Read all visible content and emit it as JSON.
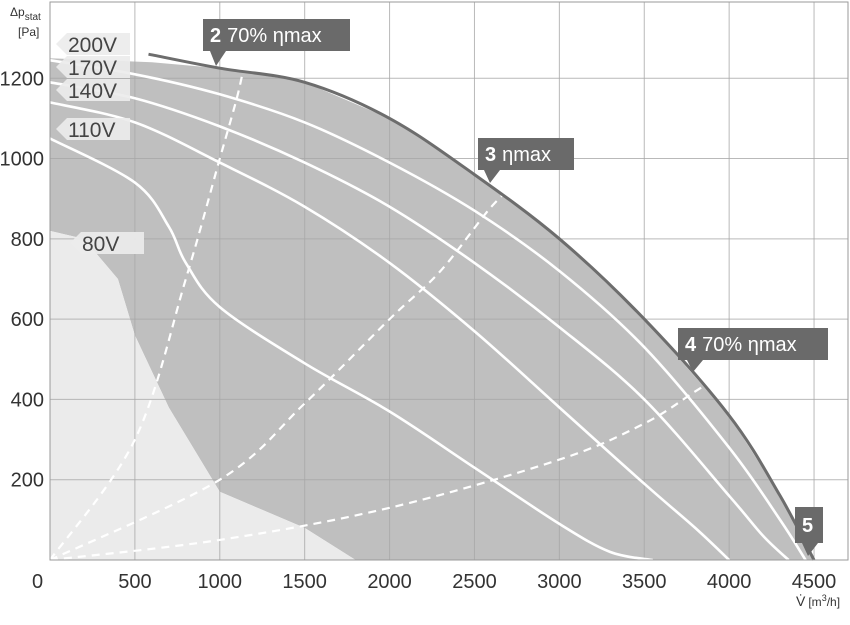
{
  "chart_data": {
    "type": "line",
    "title": "",
    "xlabel": "V̇ [m³/h]",
    "ylabel": "Δp_stat [Pa]",
    "xlabel_parts": {
      "symbol": "V̇",
      "unit_prefix": "[m",
      "unit_sup": "3",
      "unit_suffix": "/h]"
    },
    "ylabel_parts": {
      "prefix": "Δp",
      "sub": "stat",
      "unit": "[Pa]"
    },
    "xlim": [
      0,
      4700
    ],
    "ylim": [
      0,
      1390
    ],
    "origin_label": "0",
    "xticks": [
      500,
      1000,
      1500,
      2000,
      2500,
      3000,
      3500,
      4000,
      4500
    ],
    "yticks": [
      200,
      400,
      600,
      800,
      1000,
      1200
    ],
    "grid": true,
    "colors": {
      "operating_area": "#bfbfbf",
      "low_area": "#ebebeb",
      "envelope": "#6d6d6d",
      "curves": "#ffffff",
      "label_box": "#ececec",
      "callout_box": "#6a6a6a"
    },
    "operating_area": [
      [
        0,
        1250
      ],
      [
        300,
        1245
      ],
      [
        600,
        1240
      ],
      [
        1000,
        1225
      ],
      [
        1500,
        1190
      ],
      [
        2000,
        1100
      ],
      [
        2500,
        960
      ],
      [
        3000,
        800
      ],
      [
        3500,
        600
      ],
      [
        4000,
        360
      ],
      [
        4300,
        160
      ],
      [
        4500,
        0
      ],
      [
        1800,
        0
      ],
      [
        1500,
        80
      ],
      [
        1000,
        170
      ],
      [
        700,
        380
      ],
      [
        500,
        560
      ],
      [
        400,
        700
      ],
      [
        200,
        800
      ],
      [
        0,
        820
      ]
    ],
    "low_area": [
      [
        0,
        820
      ],
      [
        200,
        800
      ],
      [
        400,
        700
      ],
      [
        500,
        560
      ],
      [
        700,
        380
      ],
      [
        1000,
        170
      ],
      [
        1500,
        80
      ],
      [
        1800,
        0
      ],
      [
        0,
        0
      ]
    ],
    "envelope": {
      "name": "max",
      "x": [
        580,
        1000,
        1500,
        2000,
        2500,
        3000,
        3500,
        4000,
        4300,
        4500
      ],
      "y": [
        1260,
        1225,
        1190,
        1100,
        960,
        800,
        600,
        360,
        160,
        0
      ]
    },
    "series": [
      {
        "name": "200V",
        "label": "200V",
        "x": [
          0,
          500,
          1000,
          1500,
          2000,
          2500,
          3000,
          3500,
          4000,
          4300,
          4450
        ],
        "y": [
          1245,
          1210,
          1160,
          1090,
          990,
          870,
          720,
          530,
          280,
          100,
          0
        ]
      },
      {
        "name": "170V",
        "label": "170V",
        "x": [
          0,
          500,
          1000,
          1500,
          2000,
          2500,
          3000,
          3500,
          4000,
          4200,
          4350
        ],
        "y": [
          1190,
          1150,
          1080,
          990,
          880,
          740,
          580,
          400,
          160,
          60,
          0
        ]
      },
      {
        "name": "140V",
        "label": "140V",
        "x": [
          0,
          500,
          1000,
          1500,
          2000,
          2500,
          3000,
          3500,
          3800,
          4000
        ],
        "y": [
          1140,
          1090,
          990,
          880,
          740,
          570,
          380,
          190,
          80,
          0
        ]
      },
      {
        "name": "110V",
        "label": "110V",
        "x": [
          0,
          500,
          700,
          800,
          1000,
          1500,
          2000,
          2500,
          3000,
          3300,
          3550
        ],
        "y": [
          1050,
          940,
          830,
          740,
          630,
          490,
          370,
          230,
          90,
          20,
          0
        ]
      },
      {
        "name": "80V",
        "label": "80V",
        "x": [],
        "y": []
      }
    ],
    "efficiency_lines": [
      {
        "name": "2 70% ηmax",
        "num": "2",
        "text": "70% ηmax",
        "x": [
          0,
          500,
          800,
          1000,
          1100,
          1150
        ],
        "y": [
          0,
          300,
          700,
          1000,
          1150,
          1245
        ]
      },
      {
        "name": "3 ηmax",
        "num": "3",
        "text": "ηmax",
        "x": [
          0,
          1000,
          1500,
          2000,
          2300,
          2600,
          2800
        ],
        "y": [
          0,
          200,
          390,
          600,
          720,
          880,
          960
        ]
      },
      {
        "name": "4 70% ηmax",
        "num": "4",
        "text": "70% ηmax",
        "x": [
          0,
          1000,
          2000,
          3000,
          3500,
          3800,
          3950
        ],
        "y": [
          0,
          50,
          130,
          250,
          340,
          420,
          460
        ]
      },
      {
        "name": "5",
        "num": "5",
        "text": "",
        "x": [
          0,
          4500
        ],
        "y": [
          0,
          0
        ]
      }
    ]
  }
}
